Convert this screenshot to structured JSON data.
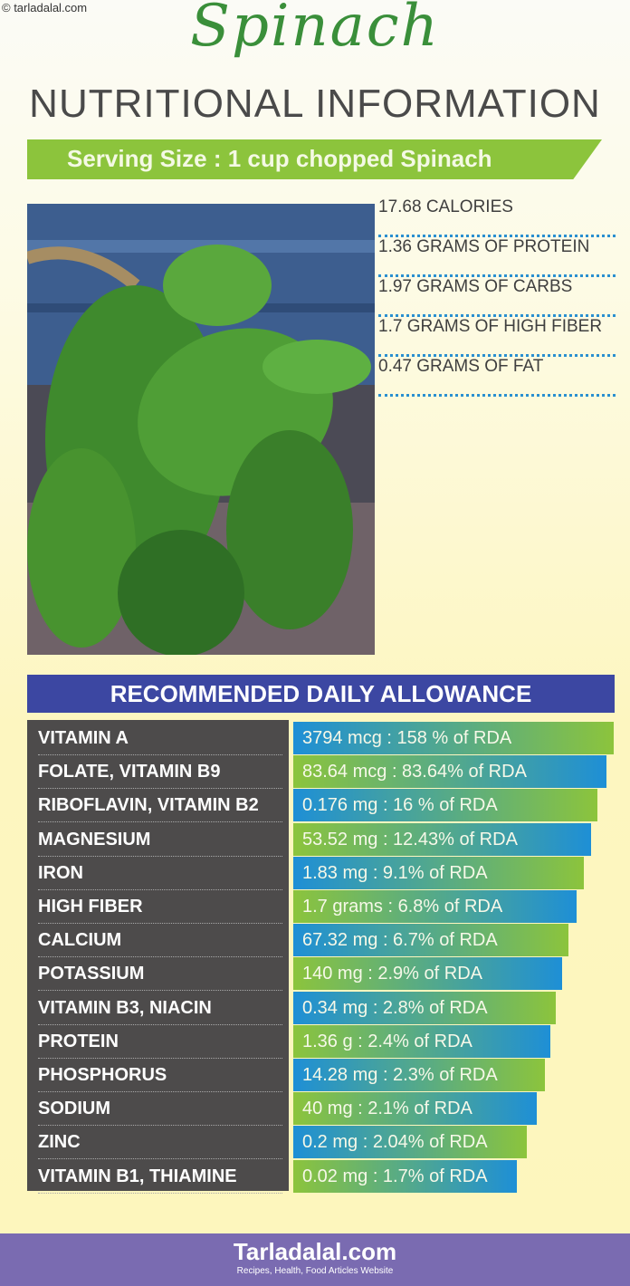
{
  "watermark": "© tarladalal.com",
  "title": "Spinach",
  "subtitle": "NUTRITIONAL INFORMATION",
  "serving": "Serving Size : 1 cup chopped Spinach",
  "facts": [
    "17.68 CALORIES",
    "1.36 GRAMS OF PROTEIN",
    "1.97 GRAMS OF CARBS",
    "1.7 GRAMS OF HIGH FIBER",
    "0.47 GRAMS OF FAT"
  ],
  "rda_title": "RECOMMENDED DAILY ALLOWANCE",
  "rda": [
    {
      "nutrient": "VITAMIN A",
      "value": "3794 mcg : 158 % of RDA"
    },
    {
      "nutrient": "FOLATE, VITAMIN B9",
      "value": "83.64 mcg : 83.64% of RDA"
    },
    {
      "nutrient": "RIBOFLAVIN, VITAMIN B2",
      "value": "0.176 mg : 16 % of RDA"
    },
    {
      "nutrient": "MAGNESIUM",
      "value": "53.52 mg : 12.43% of RDA"
    },
    {
      "nutrient": "IRON",
      "value": "1.83 mg : 9.1% of RDA"
    },
    {
      "nutrient": "HIGH FIBER",
      "value": "1.7 grams : 6.8% of RDA"
    },
    {
      "nutrient": "CALCIUM",
      "value": "67.32 mg : 6.7% of RDA"
    },
    {
      "nutrient": "POTASSIUM",
      "value": "140 mg : 2.9% of RDA"
    },
    {
      "nutrient": "VITAMIN B3, NIACIN",
      "value": "0.34 mg : 2.8% of RDA"
    },
    {
      "nutrient": "PROTEIN",
      "value": "1.36 g : 2.4% of RDA"
    },
    {
      "nutrient": "PHOSPHORUS",
      "value": "14.28 mg : 2.3% of RDA"
    },
    {
      "nutrient": "SODIUM",
      "value": "40 mg : 2.1% of RDA"
    },
    {
      "nutrient": "ZINC",
      "value": "0.2 mg : 2.04% of RDA"
    },
    {
      "nutrient": "VITAMIN B1, THIAMINE",
      "value": "0.02 mg : 1.7% of RDA"
    }
  ],
  "footer": {
    "brand": "Tarladalal.com",
    "tagline": "Recipes, Health, Food Articles Website"
  },
  "colors": {
    "green": "#8cc43c",
    "blue": "#1e8fd6",
    "header": "#3c47a2",
    "footer": "#7a6bb1",
    "label_bg": "#4d4b4b"
  }
}
